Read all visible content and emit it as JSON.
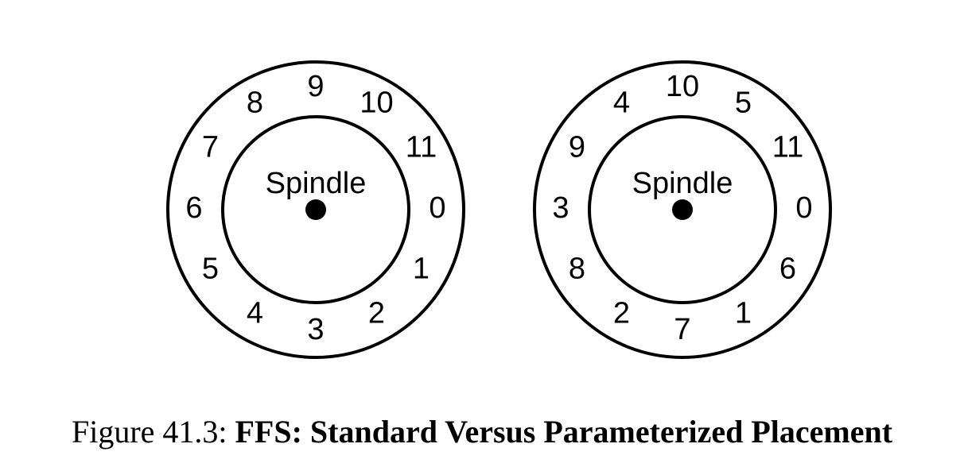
{
  "disks": [
    {
      "name": "standard",
      "spindle_label": "Spindle",
      "sectors": [
        "0",
        "1",
        "2",
        "3",
        "4",
        "5",
        "6",
        "7",
        "8",
        "9",
        "10",
        "11"
      ]
    },
    {
      "name": "parameterized",
      "spindle_label": "Spindle",
      "sectors": [
        "0",
        "6",
        "1",
        "7",
        "2",
        "8",
        "3",
        "9",
        "4",
        "10",
        "5",
        "11"
      ]
    }
  ],
  "caption": {
    "prefix": "Figure 41.3: ",
    "title": "FFS: Standard Versus Parameterized Placement"
  }
}
